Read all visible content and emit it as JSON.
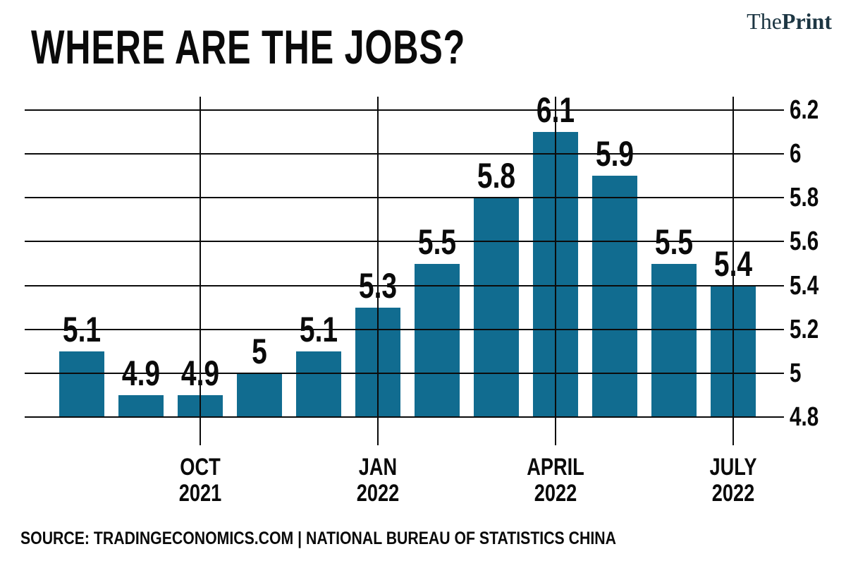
{
  "brand": {
    "the": "The",
    "print": "Print"
  },
  "title": "WHERE ARE THE JOBS?",
  "source": "SOURCE: TRADINGECONOMICS.COM | NATIONAL BUREAU OF STATISTICS CHINA",
  "colors": {
    "bar": "#116C90",
    "grid": "#0B0B0B",
    "text": "#0A0A0A",
    "logo": "#1D3643",
    "background": "#FFFFFF"
  },
  "chart_data": {
    "type": "bar",
    "title": "WHERE ARE THE JOBS?",
    "values": [
      5.1,
      4.9,
      4.9,
      5.0,
      5.1,
      5.3,
      5.5,
      5.8,
      6.1,
      5.9,
      5.5,
      5.4
    ],
    "bar_labels": [
      "5.1",
      "4.9",
      "4.9",
      "5",
      "5.1",
      "5.3",
      "5.5",
      "5.8",
      "6.1",
      "5.9",
      "5.5",
      "5.4"
    ],
    "x_ticks": [
      {
        "bar_index": 2,
        "line1": "OCT",
        "line2": "2021"
      },
      {
        "bar_index": 5,
        "line1": "JAN",
        "line2": "2022"
      },
      {
        "bar_index": 8,
        "line1": "APRIL",
        "line2": "2022"
      },
      {
        "bar_index": 11,
        "line1": "JULY",
        "line2": "2022"
      }
    ],
    "y_ticks": [
      4.8,
      5.0,
      5.2,
      5.4,
      5.6,
      5.8,
      6.0,
      6.2
    ],
    "y_tick_labels": [
      "4.8",
      "5",
      "5.2",
      "5.4",
      "5.6",
      "5.8",
      "6",
      "6.2"
    ],
    "ylim": [
      4.8,
      6.2
    ],
    "grid": true,
    "legend": false,
    "y_axis_side": "right",
    "bar_color": "#116C90"
  }
}
